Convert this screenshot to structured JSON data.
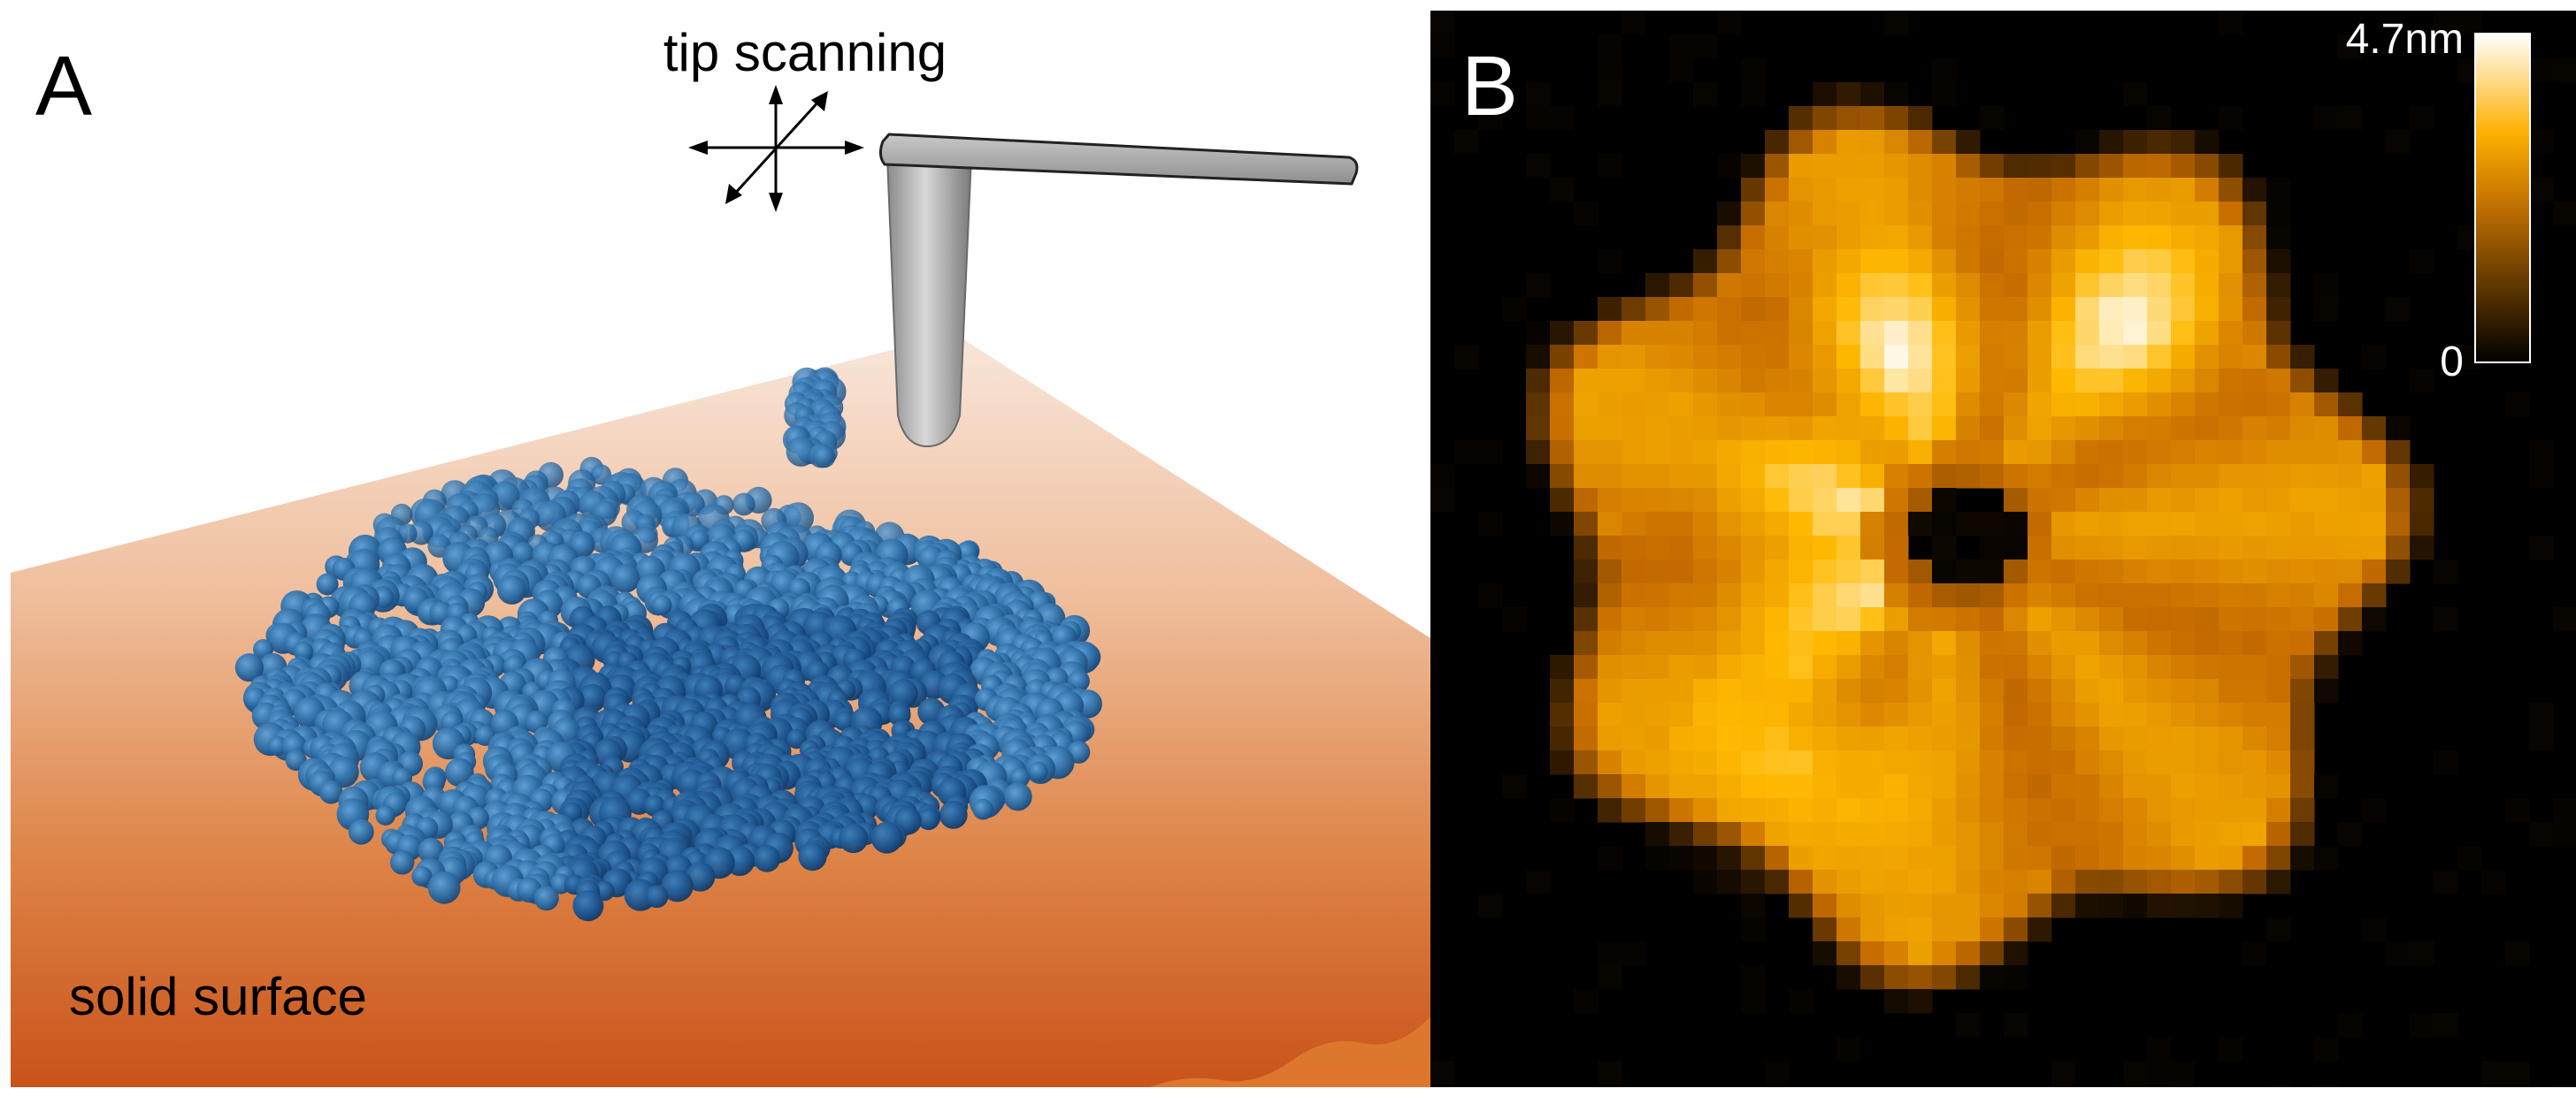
{
  "panel_a": {
    "letter": "A",
    "tip_label": "tip scanning",
    "surface_label": "solid surface",
    "colors": {
      "surface_light": "#f7e3d6",
      "surface_dark": "#c9531a",
      "protein": "#2e6da4",
      "protein_dark": "#1d4f80",
      "tip": "#a9a9a9"
    }
  },
  "panel_b": {
    "letter": "B",
    "scale_max_label": "4.7nm",
    "scale_min_label": "0",
    "colors": {
      "background": "#000000",
      "high": "#ffffff",
      "mid": "#ffb300",
      "low": "#000000"
    }
  }
}
